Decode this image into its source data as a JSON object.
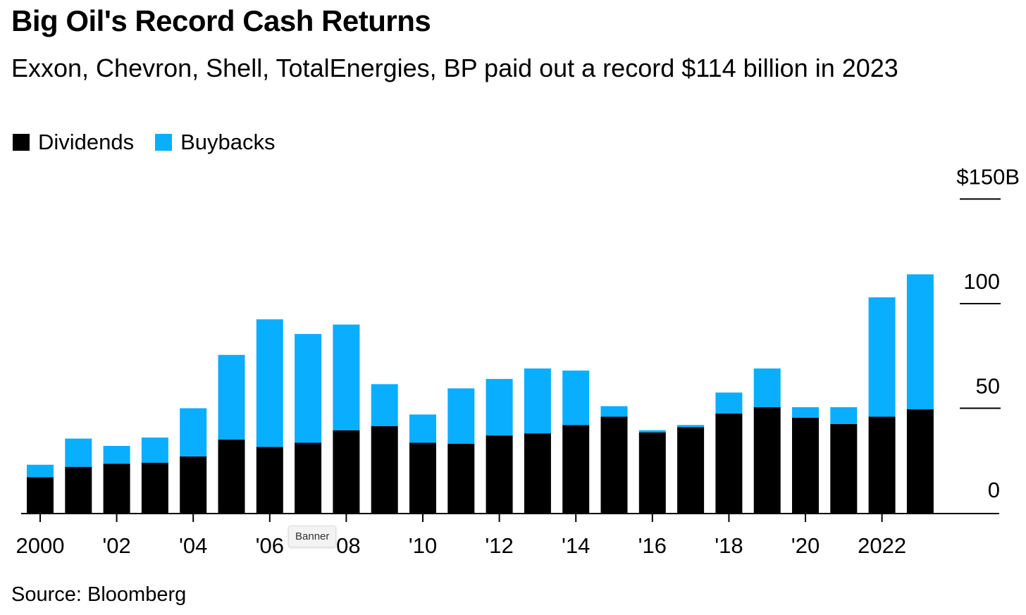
{
  "title": "Big Oil's Record Cash Returns",
  "subtitle": "Exxon, Chevron, Shell, TotalEnergies, BP paid out a record $114 billion in 2023",
  "source": "Source: Bloomberg",
  "tooltip": "Banner",
  "colors": {
    "dividends": "#000000",
    "buybacks": "#0aaeff",
    "axis": "#000000"
  },
  "chart_data": {
    "type": "bar",
    "stacked": true,
    "title": "",
    "xlabel": "",
    "ylabel": "",
    "ylim": [
      0,
      150
    ],
    "categories": [
      "2000",
      "2001",
      "2002",
      "2003",
      "2004",
      "2005",
      "2006",
      "2007",
      "2008",
      "2009",
      "2010",
      "2011",
      "2012",
      "2013",
      "2014",
      "2015",
      "2016",
      "2017",
      "2018",
      "2019",
      "2020",
      "2021",
      "2022",
      "2023"
    ],
    "series": [
      {
        "name": "Dividends",
        "values": [
          17,
          22,
          23.5,
          24,
          27,
          35,
          31.5,
          33.5,
          39.5,
          41.5,
          33.5,
          33,
          37,
          38,
          42,
          46,
          38.5,
          41,
          47.5,
          50.5,
          45.5,
          42.5,
          46,
          49.5
        ]
      },
      {
        "name": "Buybacks",
        "values": [
          6,
          13.5,
          8.5,
          12,
          23,
          40.5,
          61,
          52,
          50.5,
          20,
          13.5,
          26.5,
          27,
          31,
          26,
          5,
          1,
          1,
          10,
          18.5,
          5,
          8,
          57,
          64.5
        ]
      }
    ],
    "x_tick_labels": [
      "2000",
      "'02",
      "'04",
      "'06",
      "'08",
      "'10",
      "'12",
      "'14",
      "'16",
      "'18",
      "'20",
      "2022"
    ],
    "y_ticks": [
      0,
      50,
      100,
      150
    ],
    "y_tick_labels": [
      "0",
      "50",
      "100",
      "$150B"
    ],
    "legend": {
      "position": "top-left",
      "entries": [
        "Dividends",
        "Buybacks"
      ]
    },
    "grid": false
  }
}
